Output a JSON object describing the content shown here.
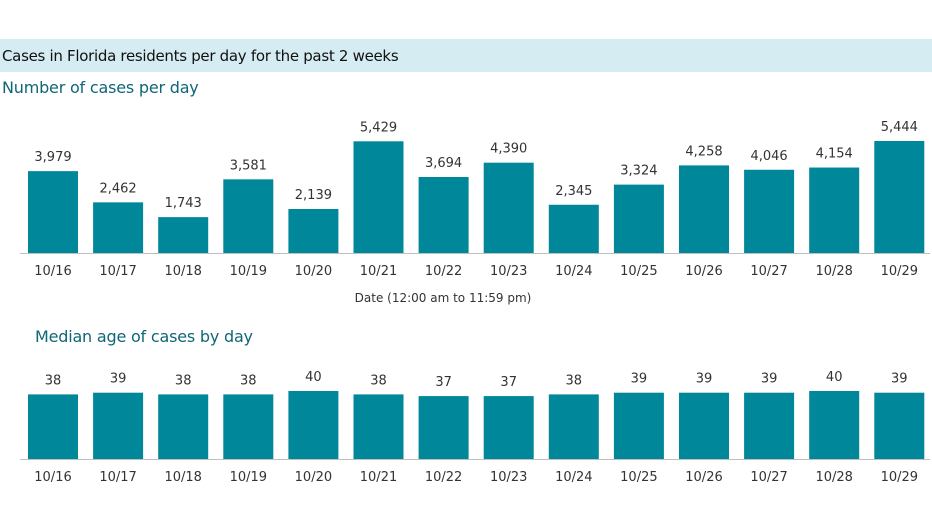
{
  "header": {
    "title": "Cases in Florida residents per day for the past 2 weeks"
  },
  "colors": {
    "bar": "#00879a",
    "banner": "#d6ecf3",
    "section_title": "#0e6677"
  },
  "chart_data": [
    {
      "type": "bar",
      "title": "Number of cases per day",
      "xlabel": "Date (12:00 am to 11:59 pm)",
      "ylabel": "",
      "categories": [
        "10/16",
        "10/17",
        "10/18",
        "10/19",
        "10/20",
        "10/21",
        "10/22",
        "10/23",
        "10/24",
        "10/25",
        "10/26",
        "10/27",
        "10/28",
        "10/29"
      ],
      "values": [
        3979,
        2462,
        1743,
        3581,
        2139,
        5429,
        3694,
        4390,
        2345,
        3324,
        4258,
        4046,
        4154,
        5444
      ],
      "value_labels": [
        "3,979",
        "2,462",
        "1,743",
        "3,581",
        "2,139",
        "5,429",
        "3,694",
        "4,390",
        "2,345",
        "3,324",
        "4,258",
        "4,046",
        "4,154",
        "5,444"
      ],
      "ylim": [
        0,
        5444
      ],
      "grid": false
    },
    {
      "type": "bar",
      "title": "Median age of cases by day",
      "xlabel": "",
      "ylabel": "",
      "categories": [
        "10/16",
        "10/17",
        "10/18",
        "10/19",
        "10/20",
        "10/21",
        "10/22",
        "10/23",
        "10/24",
        "10/25",
        "10/26",
        "10/27",
        "10/28",
        "10/29"
      ],
      "values": [
        38,
        39,
        38,
        38,
        40,
        38,
        37,
        37,
        38,
        39,
        39,
        39,
        40,
        39
      ],
      "value_labels": [
        "38",
        "39",
        "38",
        "38",
        "40",
        "38",
        "37",
        "37",
        "38",
        "39",
        "39",
        "39",
        "40",
        "39"
      ],
      "ylim": [
        0,
        40
      ],
      "grid": false
    }
  ]
}
